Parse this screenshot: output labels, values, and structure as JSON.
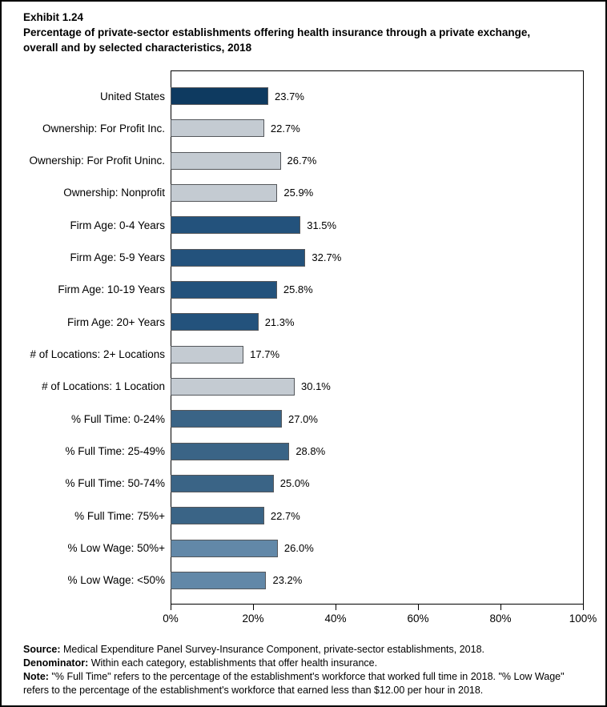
{
  "header": {
    "exhibit_label": "Exhibit 1.24",
    "title": "Percentage of private-sector establishments offering health insurance through a private exchange, overall and by selected characteristics, 2018"
  },
  "chart_data": {
    "type": "bar",
    "orientation": "horizontal",
    "title": "Percentage of private-sector establishments offering health insurance through a private exchange, overall and by selected characteristics, 2018",
    "xlabel": "",
    "ylabel": "",
    "xlim": [
      0,
      100
    ],
    "x_tick_values": [
      0,
      20,
      40,
      60,
      80,
      100
    ],
    "x_tick_labels": [
      "0%",
      "20%",
      "40%",
      "60%",
      "80%",
      "100%"
    ],
    "grid": false,
    "legend": "none",
    "bar_border_color": "#54575B",
    "color_groups": {
      "overall": "#0E3A60",
      "ownership_and_locations": "#C4CBD2",
      "firm_age": "#23527C",
      "full_time": "#3A6486",
      "low_wage": "#6288A8"
    },
    "categories": [
      "United States",
      "Ownership: For Profit Inc.",
      "Ownership: For Profit Uninc.",
      "Ownership: Nonprofit",
      "Firm Age: 0-4 Years",
      "Firm Age: 5-9 Years",
      "Firm Age: 10-19 Years",
      "Firm Age: 20+ Years",
      "# of Locations: 2+ Locations",
      "# of Locations: 1 Location",
      "% Full Time: 0-24%",
      "% Full Time: 25-49%",
      "% Full Time: 50-74%",
      "% Full Time: 75%+",
      "% Low Wage: 50%+",
      "% Low Wage: <50%"
    ],
    "values": [
      23.7,
      22.7,
      26.7,
      25.9,
      31.5,
      32.7,
      25.8,
      21.3,
      17.7,
      30.1,
      27.0,
      28.8,
      25.0,
      22.7,
      26.0,
      23.2
    ],
    "bars": [
      {
        "label": "United States",
        "value": 23.7,
        "display": "23.7%",
        "color": "#0E3A60"
      },
      {
        "label": "Ownership: For Profit Inc.",
        "value": 22.7,
        "display": "22.7%",
        "color": "#C4CBD2"
      },
      {
        "label": "Ownership: For Profit Uninc.",
        "value": 26.7,
        "display": "26.7%",
        "color": "#C4CBD2"
      },
      {
        "label": "Ownership: Nonprofit",
        "value": 25.9,
        "display": "25.9%",
        "color": "#C4CBD2"
      },
      {
        "label": "Firm Age: 0-4 Years",
        "value": 31.5,
        "display": "31.5%",
        "color": "#23527C"
      },
      {
        "label": "Firm Age: 5-9 Years",
        "value": 32.7,
        "display": "32.7%",
        "color": "#23527C"
      },
      {
        "label": "Firm Age: 10-19 Years",
        "value": 25.8,
        "display": "25.8%",
        "color": "#23527C"
      },
      {
        "label": "Firm Age: 20+ Years",
        "value": 21.3,
        "display": "21.3%",
        "color": "#23527C"
      },
      {
        "label": "# of Locations: 2+ Locations",
        "value": 17.7,
        "display": "17.7%",
        "color": "#C4CBD2"
      },
      {
        "label": "# of Locations: 1 Location",
        "value": 30.1,
        "display": "30.1%",
        "color": "#C4CBD2"
      },
      {
        "label": "% Full Time: 0-24%",
        "value": 27.0,
        "display": "27.0%",
        "color": "#3A6486"
      },
      {
        "label": "% Full Time: 25-49%",
        "value": 28.8,
        "display": "28.8%",
        "color": "#3A6486"
      },
      {
        "label": "% Full Time: 50-74%",
        "value": 25.0,
        "display": "25.0%",
        "color": "#3A6486"
      },
      {
        "label": "% Full Time: 75%+",
        "value": 22.7,
        "display": "22.7%",
        "color": "#3A6486"
      },
      {
        "label": "% Low Wage: 50%+",
        "value": 26.0,
        "display": "26.0%",
        "color": "#6288A8"
      },
      {
        "label": "% Low Wage: <50%",
        "value": 23.2,
        "display": "23.2%",
        "color": "#6288A8"
      }
    ]
  },
  "footer": {
    "source_label": "Source:",
    "source_text": " Medical Expenditure Panel Survey-Insurance Component, private-sector establishments, 2018.",
    "denominator_label": "Denominator:",
    "denominator_text": " Within each category, establishments that offer health insurance.",
    "note_label": "Note:",
    "note_text": " \"% Full Time\" refers to the percentage of the establishment's workforce that worked full time in 2018. \"% Low Wage\" refers to the percentage of the establishment's workforce that earned less than $12.00 per hour in 2018."
  }
}
